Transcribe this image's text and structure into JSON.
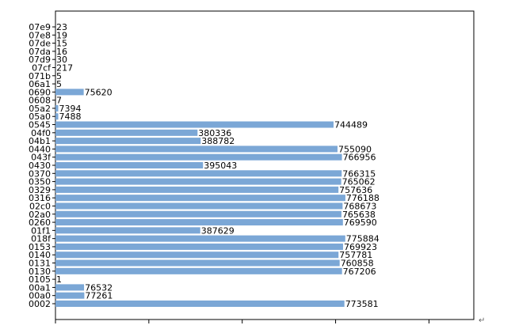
{
  "chart_data": {
    "type": "bar",
    "orientation": "horizontal",
    "bar_color": "#7ba7d6",
    "xlim": [
      0,
      1120000
    ],
    "grid": false,
    "legend": "none",
    "categories": [
      "0002",
      "00a0",
      "00a1",
      "0105",
      "0130",
      "0131",
      "0140",
      "0153",
      "018f",
      "01f1",
      "0260",
      "02a0",
      "02c0",
      "0316",
      "0329",
      "0350",
      "0370",
      "0430",
      "043f",
      "0440",
      "04b1",
      "04f0",
      "0545",
      "05a0",
      "05a2",
      "0608",
      "0690",
      "06a1",
      "071b",
      "07cf",
      "07d9",
      "07da",
      "07de",
      "07e8",
      "07e9"
    ],
    "values": [
      773581,
      77261,
      76532,
      1,
      767206,
      760858,
      757781,
      769923,
      775884,
      387629,
      769590,
      765638,
      768673,
      776188,
      757636,
      765062,
      766315,
      395043,
      766956,
      755090,
      388782,
      380336,
      744489,
      7488,
      7394,
      7,
      75620,
      5,
      5,
      217,
      30,
      16,
      15,
      19,
      23
    ],
    "value_labels": [
      "773581",
      "77261",
      "76532",
      "1",
      "767206",
      "760858",
      "757781",
      "769923",
      "775884",
      "387629",
      "769590",
      "765638",
      "768673",
      "776188",
      "757636",
      "765062",
      "766315",
      "395043",
      "766956",
      "755090",
      "388782",
      "380336",
      "744489",
      "7488",
      "7394",
      "7",
      "75620",
      "5",
      "5",
      "217",
      "30",
      "16",
      "15",
      "19",
      "23"
    ]
  },
  "page": {
    "return_mark": "↵"
  }
}
